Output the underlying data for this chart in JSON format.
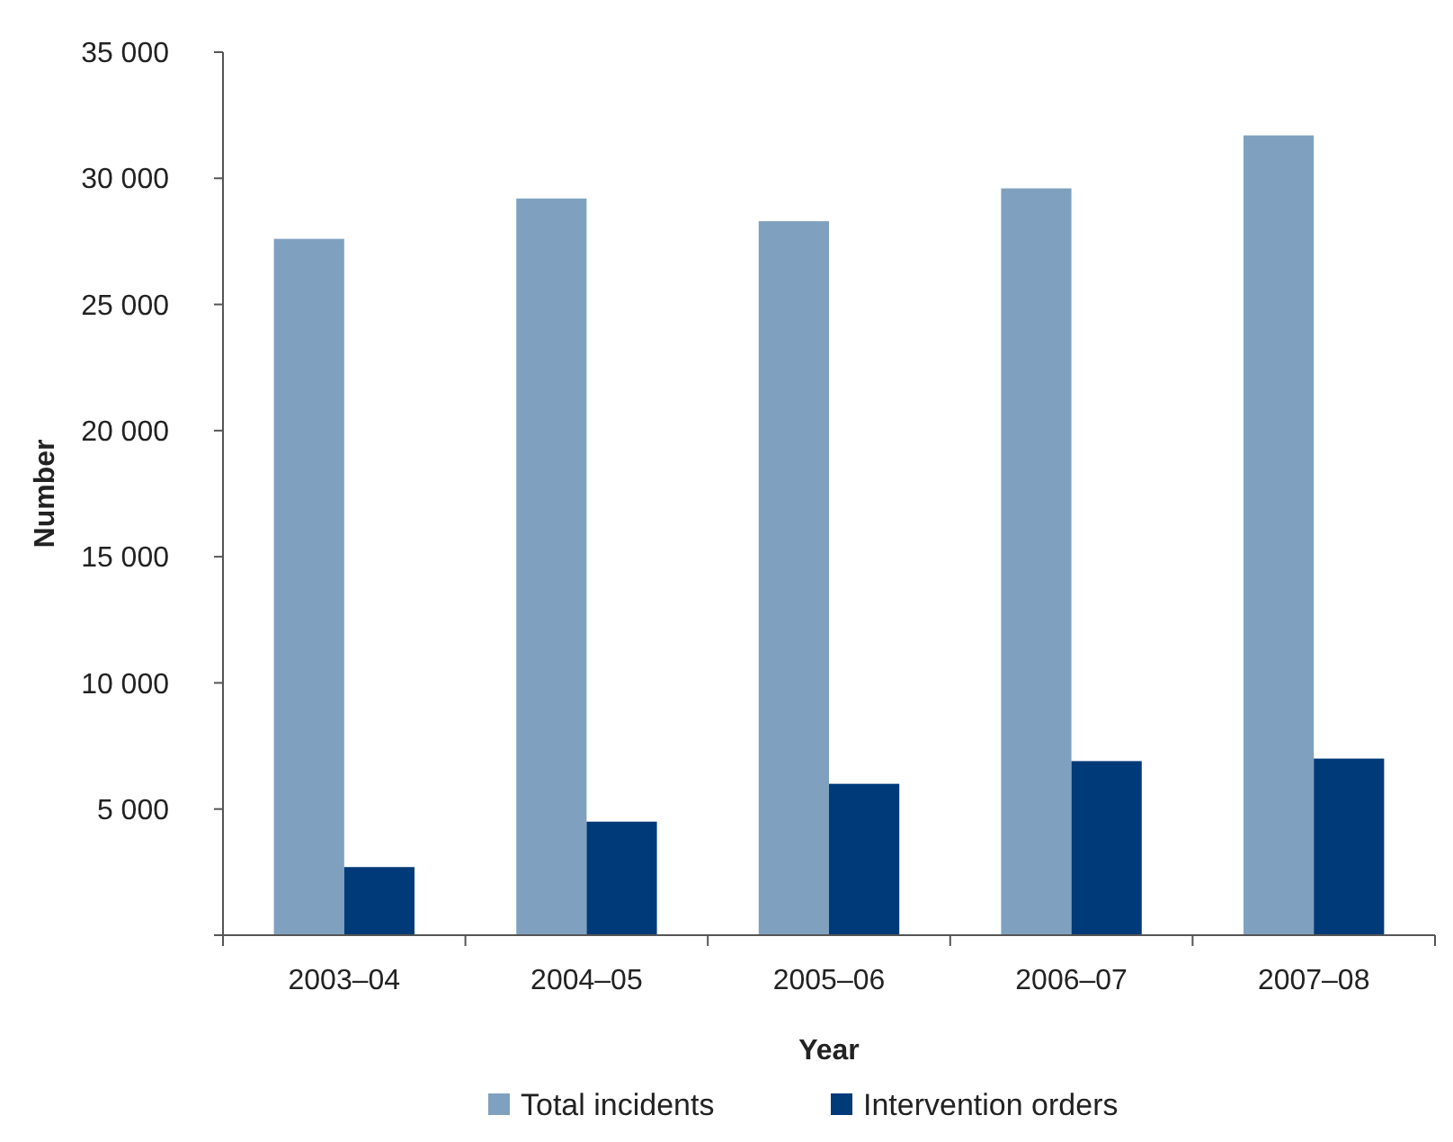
{
  "chart_data": {
    "type": "bar",
    "xlabel": "Year",
    "ylabel": "Number",
    "categories": [
      "2003–04",
      "2004–05",
      "2005–06",
      "2006–07",
      "2007–08"
    ],
    "series": [
      {
        "name": "Total incidents",
        "color": "#7fa1bf",
        "values": [
          27600,
          29200,
          28300,
          29600,
          31700
        ]
      },
      {
        "name": "Intervention orders",
        "color": "#003a78",
        "values": [
          2700,
          4500,
          6000,
          6900,
          7000
        ]
      }
    ],
    "ylim": [
      0,
      35000
    ],
    "yticks": [
      {
        "value": 0,
        "label": null
      },
      {
        "value": 5000,
        "label": "5 000"
      },
      {
        "value": 10000,
        "label": "10 000"
      },
      {
        "value": 15000,
        "label": "15 000"
      },
      {
        "value": 20000,
        "label": "20 000"
      },
      {
        "value": 25000,
        "label": "25 000"
      },
      {
        "value": 30000,
        "label": "30 000"
      },
      {
        "value": 35000,
        "label": "35 000"
      }
    ],
    "grid": false,
    "legend": "bottom"
  }
}
